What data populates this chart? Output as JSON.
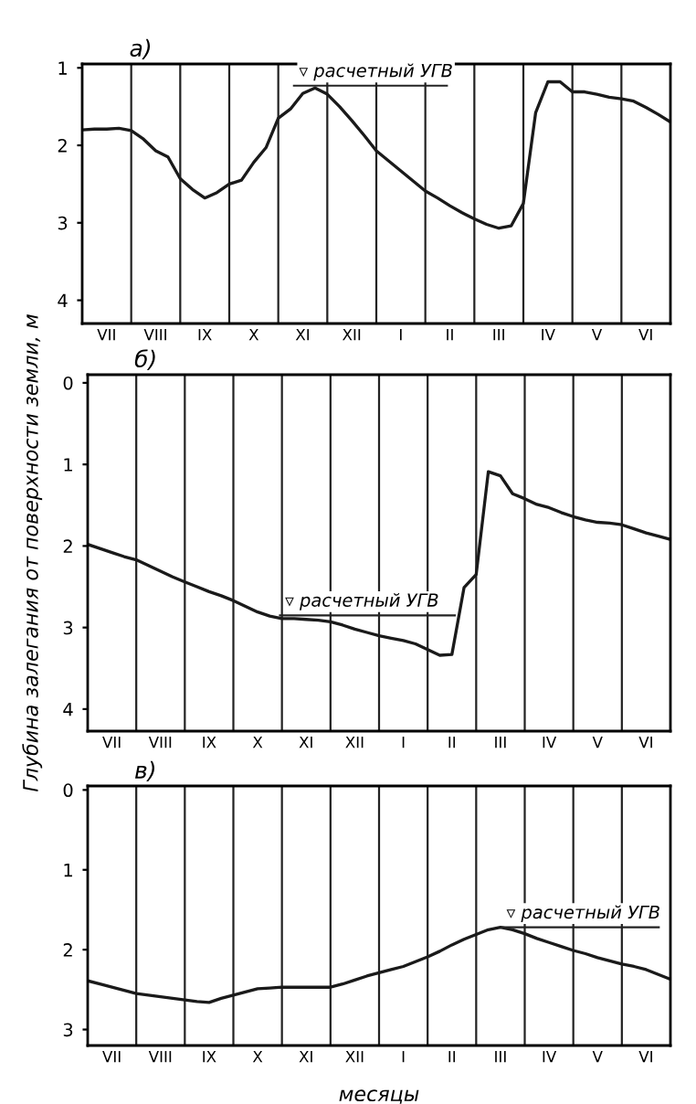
{
  "chart_data": [
    {
      "type": "line",
      "title": "а)",
      "ylim": [
        4.3,
        0.95
      ],
      "yticks": [
        1,
        2,
        3,
        4
      ],
      "categories": [
        null,
        null,
        "VII",
        null,
        null,
        null,
        "VIII",
        null,
        null,
        null,
        "IX",
        null,
        null,
        null,
        "X",
        null,
        null,
        null,
        "XI",
        null,
        null,
        null,
        "XII",
        null,
        null,
        null,
        "I",
        null,
        null,
        null,
        "II",
        null,
        null,
        null,
        "III",
        null,
        null,
        null,
        "IV",
        null,
        null,
        null,
        "V",
        null,
        null,
        null,
        "VI",
        null,
        null
      ],
      "grid": "x",
      "series": [
        {
          "color": "#1a1a1a",
          "values": [
            1.8,
            1.79,
            1.79,
            1.78,
            1.81,
            1.92,
            2.07,
            2.15,
            2.43,
            2.57,
            2.68,
            2.61,
            2.5,
            2.45,
            2.22,
            2.03,
            1.65,
            1.53,
            1.33,
            1.26,
            1.34,
            1.5,
            1.68,
            1.87,
            2.07,
            2.2,
            2.33,
            2.46,
            2.59,
            2.68,
            2.78,
            2.87,
            2.95,
            3.02,
            3.07,
            3.04,
            2.75,
            1.58,
            1.18,
            1.18,
            1.31,
            1.31,
            1.34,
            1.38,
            1.4,
            1.43,
            1.51,
            1.6,
            1.7
          ]
        }
      ],
      "ref_lines": [
        {
          "axis": "y",
          "value": 1.23,
          "label": "▿ расчетный УГВ"
        }
      ]
    },
    {
      "type": "line",
      "title": "б)",
      "ylabel": "Глубина залегания от поверхности земли, м",
      "ylim": [
        4.27,
        -0.1
      ],
      "yticks": [
        0,
        1,
        2,
        3,
        4
      ],
      "categories": [
        null,
        null,
        "VII",
        null,
        null,
        null,
        "VIII",
        null,
        null,
        null,
        "IX",
        null,
        null,
        null,
        "X",
        null,
        null,
        null,
        "XI",
        null,
        null,
        null,
        "XII",
        null,
        null,
        null,
        "I",
        null,
        null,
        null,
        "II",
        null,
        null,
        null,
        "III",
        null,
        null,
        null,
        "IV",
        null,
        null,
        null,
        "V",
        null,
        null,
        null,
        "VI",
        null,
        null
      ],
      "grid": "x",
      "series": [
        {
          "color": "#1a1a1a",
          "values": [
            1.98,
            2.03,
            2.08,
            2.13,
            2.17,
            2.24,
            2.31,
            2.38,
            2.44,
            2.5,
            2.56,
            2.61,
            2.67,
            2.74,
            2.81,
            2.86,
            2.89,
            2.89,
            2.9,
            2.91,
            2.93,
            2.97,
            3.02,
            3.06,
            3.1,
            3.13,
            3.16,
            3.2,
            3.27,
            3.34,
            3.33,
            2.51,
            2.35,
            1.09,
            1.14,
            1.36,
            1.42,
            1.49,
            1.53,
            1.59,
            1.64,
            1.68,
            1.71,
            1.72,
            1.74,
            1.79,
            1.84,
            1.88,
            1.92
          ]
        }
      ],
      "ref_lines": [
        {
          "axis": "y",
          "value": 2.85,
          "label": "▿ расчетный УГВ"
        }
      ]
    },
    {
      "type": "line",
      "title": "в)",
      "xlabel": "месяцы",
      "ylim": [
        3.2,
        -0.05
      ],
      "yticks": [
        0,
        1,
        2,
        3
      ],
      "categories": [
        null,
        null,
        "VII",
        null,
        null,
        null,
        "VIII",
        null,
        null,
        null,
        "IX",
        null,
        null,
        null,
        "X",
        null,
        null,
        null,
        "XI",
        null,
        null,
        null,
        "XII",
        null,
        null,
        null,
        "I",
        null,
        null,
        null,
        "II",
        null,
        null,
        null,
        "III",
        null,
        null,
        null,
        "IV",
        null,
        null,
        null,
        "V",
        null,
        null,
        null,
        "VI",
        null,
        null
      ],
      "grid": "x",
      "series": [
        {
          "color": "#1a1a1a",
          "values": [
            2.39,
            2.43,
            2.47,
            2.51,
            2.55,
            2.57,
            2.59,
            2.61,
            2.63,
            2.65,
            2.66,
            2.61,
            2.57,
            2.53,
            2.49,
            2.48,
            2.47,
            2.47,
            2.47,
            2.47,
            2.47,
            2.43,
            2.38,
            2.33,
            2.29,
            2.25,
            2.21,
            2.15,
            2.09,
            2.02,
            1.94,
            1.87,
            1.81,
            1.75,
            1.72,
            1.75,
            1.8,
            1.86,
            1.91,
            1.96,
            2.01,
            2.05,
            2.1,
            2.14,
            2.18,
            2.21,
            2.25,
            2.31,
            2.37
          ]
        }
      ],
      "ref_lines": [
        {
          "axis": "y",
          "value": 1.72,
          "label": "▿ расчетный УГВ"
        }
      ]
    }
  ]
}
